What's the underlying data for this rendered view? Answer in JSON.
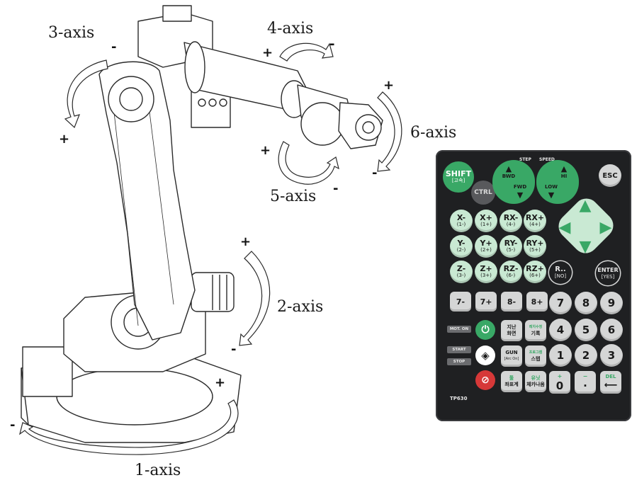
{
  "axes": {
    "axis1": {
      "label": "1-axis",
      "plus": "+",
      "minus": "-"
    },
    "axis2": {
      "label": "2-axis",
      "plus": "+",
      "minus": "-"
    },
    "axis3": {
      "label": "3-axis",
      "plus": "+",
      "minus": "-"
    },
    "axis4": {
      "label": "4-axis",
      "plus": "+",
      "minus": "-"
    },
    "axis5": {
      "label": "5-axis",
      "plus": "+",
      "minus": "-"
    },
    "axis6": {
      "label": "6-axis",
      "plus": "+",
      "minus": "-"
    }
  },
  "pendant": {
    "model": "TP630",
    "step_label": "STEP",
    "speed_label": "SPEED",
    "shift": {
      "main": "SHIFT",
      "sub": "[고속]"
    },
    "ctrl": "CTRL",
    "esc": "ESC",
    "bwd": "BWD",
    "fwd": "FWD",
    "hi": "HI",
    "low": "LOW",
    "jog_keys": [
      {
        "main": "X-",
        "sub": "(1-)"
      },
      {
        "main": "X+",
        "sub": "(1+)"
      },
      {
        "main": "RX-",
        "sub": "(4-)"
      },
      {
        "main": "RX+",
        "sub": "(4+)"
      },
      {
        "main": "Y-",
        "sub": "(2-)"
      },
      {
        "main": "Y+",
        "sub": "(2+)"
      },
      {
        "main": "RY-",
        "sub": "(5-)"
      },
      {
        "main": "RY+",
        "sub": "(5+)"
      },
      {
        "main": "Z-",
        "sub": "(3-)"
      },
      {
        "main": "Z+",
        "sub": "(3+)"
      },
      {
        "main": "RZ-",
        "sub": "(6-)"
      },
      {
        "main": "RZ+",
        "sub": "(6+)"
      }
    ],
    "r_key": {
      "main": "R..",
      "sub": "[NO]"
    },
    "enter_key": {
      "main": "ENTER",
      "sub": "[YES]"
    },
    "ext_keys": [
      "7-",
      "7+",
      "8-",
      "8+"
    ],
    "numbers": [
      "7",
      "8",
      "9",
      "4",
      "5",
      "6",
      "1",
      "2",
      "3"
    ],
    "zero": "0",
    "dot": "·",
    "plus_label": "+",
    "minus_label": "−",
    "del_label": "DEL",
    "mot_on": "MOT. ON",
    "start": "START",
    "stop": "STOP",
    "prev_screen": {
      "l1": "지난",
      "l2": "화면"
    },
    "record": {
      "l1": "레지수정",
      "l2": "기록"
    },
    "gun": {
      "l1": "GUN",
      "l2": "[Arc On]"
    },
    "step_key": {
      "l1": "프로그램",
      "l2": "스텝"
    },
    "coord": {
      "l1": "툴",
      "l2": "좌표계"
    },
    "check": {
      "l1": "유닛",
      "l2": "체카나옴"
    }
  }
}
